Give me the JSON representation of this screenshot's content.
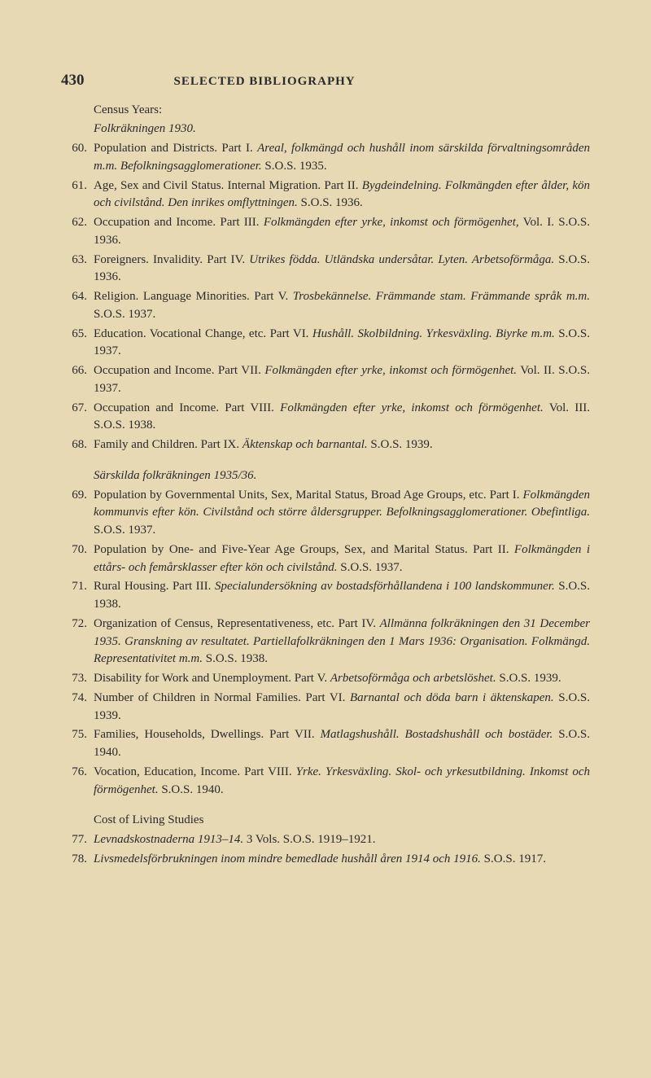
{
  "pageNumber": "430",
  "title": "SELECTED BIBLIOGRAPHY",
  "sections": [
    {
      "subheading": "Census Years:",
      "subheadingItalic": "Folkräkningen 1930.",
      "entries": [
        {
          "num": "60.",
          "text": "Population and Districts. Part I. <i>Areal, folkmängd och hushåll inom särskilda förvaltningsområden m.m. Befolkningsagglomerationer.</i> S.O.S. 1935."
        },
        {
          "num": "61.",
          "text": "Age, Sex and Civil Status. Internal Migration. Part II. <i>Bygdeindelning. Folkmängden efter ålder, kön och civilstånd. Den inrikes omflyttningen.</i> S.O.S. 1936."
        },
        {
          "num": "62.",
          "text": "Occupation and Income. Part III. <i>Folkmängden efter yrke, inkomst och förmögenhet,</i> Vol. I. S.O.S. 1936."
        },
        {
          "num": "63.",
          "text": "Foreigners. Invalidity. Part IV. <i>Utrikes födda. Utländska undersåtar. Lyten. Arbetsoförmåga.</i> S.O.S. 1936."
        },
        {
          "num": "64.",
          "text": "Religion. Language Minorities. Part V. <i>Trosbekännelse. Främmande stam. Främmande språk m.m.</i> S.O.S. 1937."
        },
        {
          "num": "65.",
          "text": "Education. Vocational Change, etc. Part VI. <i>Hushåll. Skolbildning. Yrkesväxling. Biyrke m.m.</i> S.O.S. 1937."
        },
        {
          "num": "66.",
          "text": "Occupation and Income. Part VII. <i>Folkmängden efter yrke, inkomst och förmögenhet.</i> Vol. II. S.O.S. 1937."
        },
        {
          "num": "67.",
          "text": "Occupation and Income. Part VIII. <i>Folkmängden efter yrke, inkomst och förmögenhet.</i> Vol. III. S.O.S. 1938."
        },
        {
          "num": "68.",
          "text": "Family and Children. Part IX. <i>Äktenskap och barnantal.</i> S.O.S. 1939."
        }
      ]
    },
    {
      "subheadingItalic": "Särskilda folkräkningen 1935/36.",
      "entries": [
        {
          "num": "69.",
          "text": "Population by Governmental Units, Sex, Marital Status, Broad Age Groups, etc. Part I. <i>Folkmängden kommunvis efter kön. Civilstånd och större åldersgrupper. Befolkningsagglomerationer. Obefintliga.</i> S.O.S. 1937."
        },
        {
          "num": "70.",
          "text": "Population by One- and Five-Year Age Groups, Sex, and Marital Status. Part II. <i>Folkmängden i ettårs- och femårsklasser efter kön och civilstånd.</i> S.O.S. 1937."
        },
        {
          "num": "71.",
          "text": "Rural Housing. Part III. <i>Specialundersökning av bostadsförhållandena i 100 landskommuner.</i> S.O.S. 1938."
        },
        {
          "num": "72.",
          "text": "Organization of Census, Representativeness, etc. Part IV. <i>Allmänna folkräkningen den 31 December 1935. Granskning av resultatet. Partiellafolkräkningen den 1 Mars 1936: Organisation. Folkmängd. Representativitet m.m.</i> S.O.S. 1938."
        },
        {
          "num": "73.",
          "text": "Disability for Work and Unemployment. Part V. <i>Arbetsoförmåga och arbetslöshet.</i> S.O.S. 1939."
        },
        {
          "num": "74.",
          "text": "Number of Children in Normal Families. Part VI. <i>Barnantal och döda barn i äktenskapen.</i> S.O.S. 1939."
        },
        {
          "num": "75.",
          "text": "Families, Households, Dwellings. Part VII. <i>Matlagshushåll. Bostadshushåll och bostäder.</i> S.O.S. 1940."
        },
        {
          "num": "76.",
          "text": "Vocation, Education, Income. Part VIII. <i>Yrke. Yrkesväxling. Skol- och yrkesutbildning. Inkomst och förmögenhet.</i> S.O.S. 1940."
        }
      ]
    },
    {
      "subheading": "Cost of Living Studies",
      "entries": [
        {
          "num": "77.",
          "text": "<i>Levnadskostnaderna 1913–14.</i> 3 Vols. S.O.S. 1919–1921."
        },
        {
          "num": "78.",
          "text": "<i>Livsmedelsförbrukningen inom mindre bemedlade hushåll åren 1914 och 1916.</i> S.O.S. 1917."
        }
      ]
    }
  ]
}
